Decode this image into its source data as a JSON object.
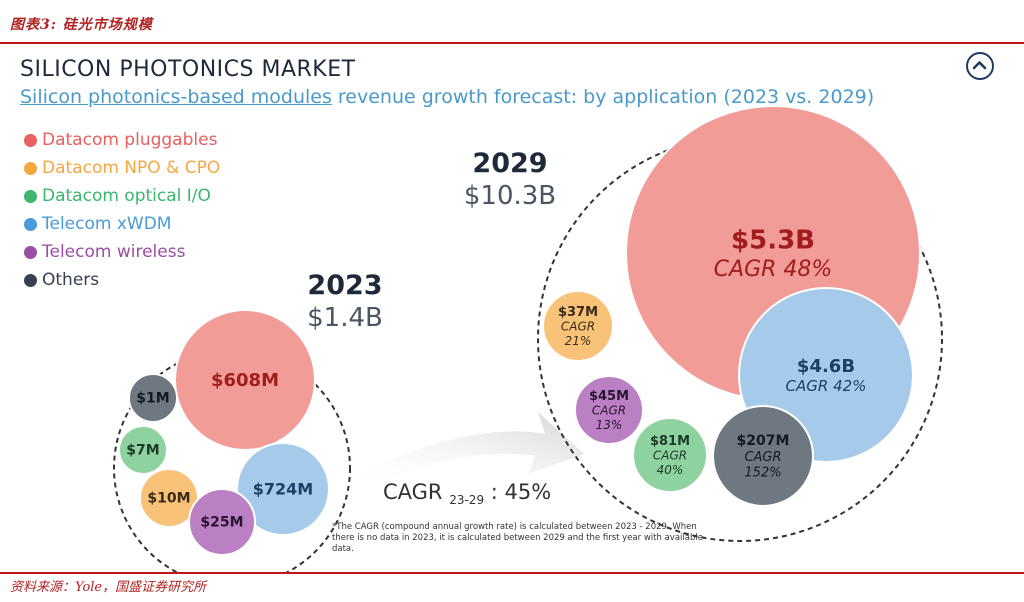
{
  "header": {
    "caption": "图表3: 硅光市场规模"
  },
  "footer": {
    "source": "资料来源：Yole，国盛证券研究所"
  },
  "panel": {
    "title": "SILICON PHOTONICS MARKET",
    "subtitle_link": "Silicon photonics-based modules",
    "subtitle_rest": " revenue growth forecast: by application (2023 vs. 2029)",
    "scroll_icon": "chevron-up-icon"
  },
  "chart_data": {
    "type": "bubble",
    "title": "SILICON PHOTONICS MARKET",
    "subtitle": "Silicon photonics-based modules revenue growth forecast: by application (2023 vs. 2029)",
    "legend": [
      {
        "name": "Datacom pluggables",
        "color": "#e8605f"
      },
      {
        "name": "Datacom NPO & CPO",
        "color": "#f5a742"
      },
      {
        "name": "Datacom optical I/O",
        "color": "#3cb56e"
      },
      {
        "name": "Telecom xWDM",
        "color": "#4a9ad8"
      },
      {
        "name": "Telecom wireless",
        "color": "#9b4ea5"
      },
      {
        "name": "Others",
        "color": "#374151"
      }
    ],
    "years": [
      {
        "year": "2023",
        "total": "$1.4B",
        "bubbles": [
          {
            "segment": "Datacom pluggables",
            "value_musd": 608,
            "label": "$608M"
          },
          {
            "segment": "Telecom xWDM",
            "value_musd": 724,
            "label": "$724M"
          },
          {
            "segment": "Others",
            "value_musd": 1,
            "label": "$1M"
          },
          {
            "segment": "Datacom optical I/O",
            "value_musd": 7,
            "label": "$7M"
          },
          {
            "segment": "Datacom NPO & CPO",
            "value_musd": 10,
            "label": "$10M"
          },
          {
            "segment": "Telecom wireless",
            "value_musd": 25,
            "label": "$25M"
          }
        ]
      },
      {
        "year": "2029",
        "total": "$10.3B",
        "bubbles": [
          {
            "segment": "Datacom pluggables",
            "value_musd": 5300,
            "label": "$5.3B",
            "cagr_label": "CAGR 48%"
          },
          {
            "segment": "Telecom xWDM",
            "value_musd": 4600,
            "label": "$4.6B",
            "cagr_label": "CAGR 42%"
          },
          {
            "segment": "Datacom NPO & CPO",
            "value_musd": 37,
            "label": "$37M",
            "cagr_word": "CAGR",
            "cagr_value": "21%"
          },
          {
            "segment": "Telecom wireless",
            "value_musd": 45,
            "label": "$45M",
            "cagr_word": "CAGR",
            "cagr_value": "13%"
          },
          {
            "segment": "Datacom optical I/O",
            "value_musd": 81,
            "label": "$81M",
            "cagr_word": "CAGR",
            "cagr_value": "40%"
          },
          {
            "segment": "Others",
            "value_musd": 207,
            "label": "$207M",
            "cagr_word": "CAGR",
            "cagr_value": "152%"
          }
        ]
      }
    ],
    "overall_cagr": {
      "prefix": "CAGR ",
      "subscript": "23-29",
      "value": " : 45%"
    },
    "footnote": "*The CAGR (compound annual growth rate) is calculated between 2023 - 2029. When there is no data in 2023, it is calculated between 2029 and the first year with available data."
  }
}
